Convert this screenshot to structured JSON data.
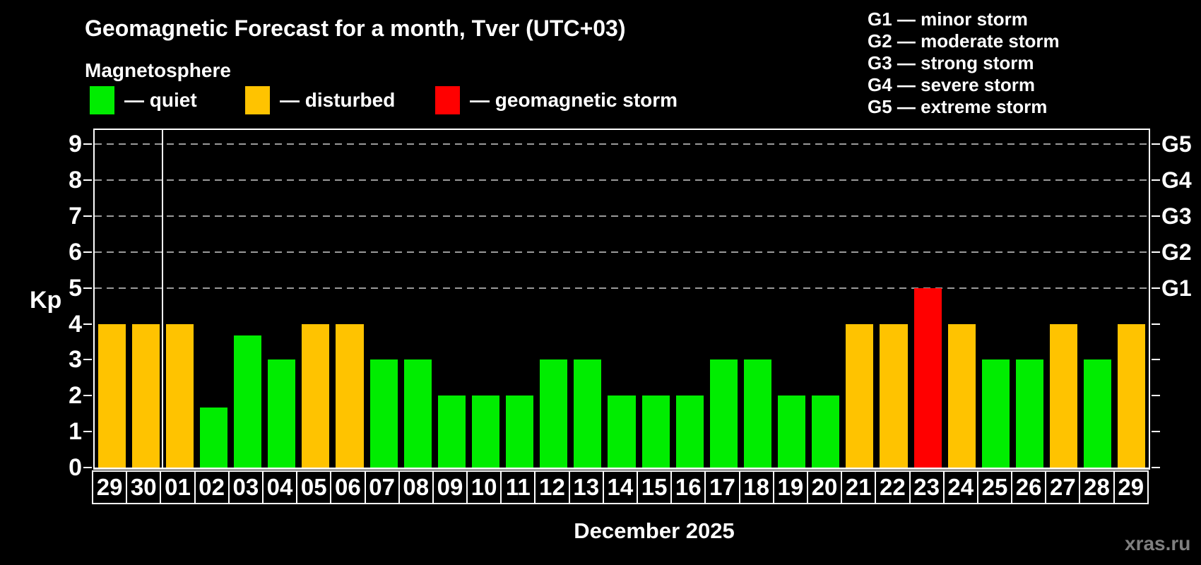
{
  "title": "Geomagnetic Forecast for a month, Tver (UTC+03)",
  "subtitle": "Magnetosphere",
  "legend": {
    "items": [
      {
        "name": "quiet",
        "label": "— quiet",
        "color": "#00ed00"
      },
      {
        "name": "disturbed",
        "label": "— disturbed",
        "color": "#ffc300"
      },
      {
        "name": "storm",
        "label": "— geomagnetic storm",
        "color": "#ff0000"
      }
    ]
  },
  "storm_scale": {
    "lines": [
      {
        "code": "G1",
        "label": "G1 — minor storm"
      },
      {
        "code": "G2",
        "label": "G2 — moderate storm"
      },
      {
        "code": "G3",
        "label": "G3 — strong storm"
      },
      {
        "code": "G4",
        "label": "G4 — severe storm"
      },
      {
        "code": "G5",
        "label": "G5 — extreme storm"
      }
    ]
  },
  "axis": {
    "ylabel": "Kp",
    "yticks": [
      "0",
      "1",
      "2",
      "3",
      "4",
      "5",
      "6",
      "7",
      "8",
      "9"
    ],
    "right_labels": [
      {
        "value": 5,
        "label": "G1"
      },
      {
        "value": 6,
        "label": "G2"
      },
      {
        "value": 7,
        "label": "G3"
      },
      {
        "value": 8,
        "label": "G4"
      },
      {
        "value": 9,
        "label": "G5"
      }
    ]
  },
  "xlabel": "December 2025",
  "watermark": "xras.ru",
  "chart_data": {
    "type": "bar",
    "title": "Geomagnetic Forecast for a month, Tver (UTC+03)",
    "xlabel": "December 2025",
    "ylabel": "Kp",
    "ylim": [
      0,
      9.4
    ],
    "grid_on": true,
    "grid_values": [
      5,
      6,
      7,
      8,
      9
    ],
    "legend_position": "top-left",
    "categories": [
      "29",
      "30",
      "01",
      "02",
      "03",
      "04",
      "05",
      "06",
      "07",
      "08",
      "09",
      "10",
      "11",
      "12",
      "13",
      "14",
      "15",
      "16",
      "17",
      "18",
      "19",
      "20",
      "21",
      "22",
      "23",
      "24",
      "25",
      "26",
      "27",
      "28",
      "29"
    ],
    "values": [
      4,
      4,
      4,
      1.67,
      3.67,
      3,
      4,
      4,
      3,
      3,
      2,
      2,
      2,
      3,
      3,
      2,
      2,
      2,
      3,
      3,
      2,
      2,
      4,
      4,
      5,
      4,
      3,
      3,
      4,
      3,
      4
    ],
    "statuses": [
      "disturbed",
      "disturbed",
      "disturbed",
      "quiet",
      "quiet",
      "quiet",
      "disturbed",
      "disturbed",
      "quiet",
      "quiet",
      "quiet",
      "quiet",
      "quiet",
      "quiet",
      "quiet",
      "quiet",
      "quiet",
      "quiet",
      "quiet",
      "quiet",
      "quiet",
      "quiet",
      "disturbed",
      "disturbed",
      "storm",
      "disturbed",
      "quiet",
      "quiet",
      "disturbed",
      "quiet",
      "disturbed"
    ],
    "palette": {
      "quiet": "#00ed00",
      "disturbed": "#ffc300",
      "storm": "#ff0000"
    },
    "month_separator_before_index": 2
  }
}
